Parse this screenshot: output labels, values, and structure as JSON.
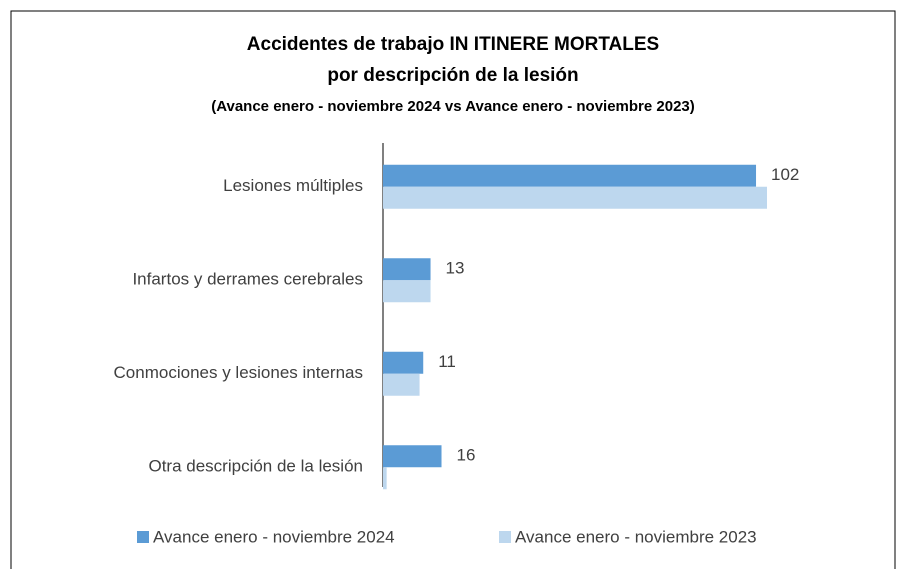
{
  "chart_data": {
    "type": "hbar",
    "title": [
      "Accidentes de trabajo IN ITINERE MORTALES",
      "por descripción de la lesión"
    ],
    "subtitle": "(Avance enero - noviembre 2024 vs Avance enero - noviembre 2023)",
    "categories": [
      "Lesiones múltiples",
      "Infartos y derrames cerebrales",
      "Conmociones y lesiones internas",
      "Otra descripción de la lesión"
    ],
    "series": [
      {
        "name": "Avance enero - noviembre 2024",
        "color": "#5b9bd5",
        "values": [
          102,
          13,
          11,
          16
        ]
      },
      {
        "name": "Avance enero - noviembre 2023",
        "color": "#bdd7ee",
        "values": [
          105,
          13,
          10,
          1
        ]
      }
    ]
  }
}
